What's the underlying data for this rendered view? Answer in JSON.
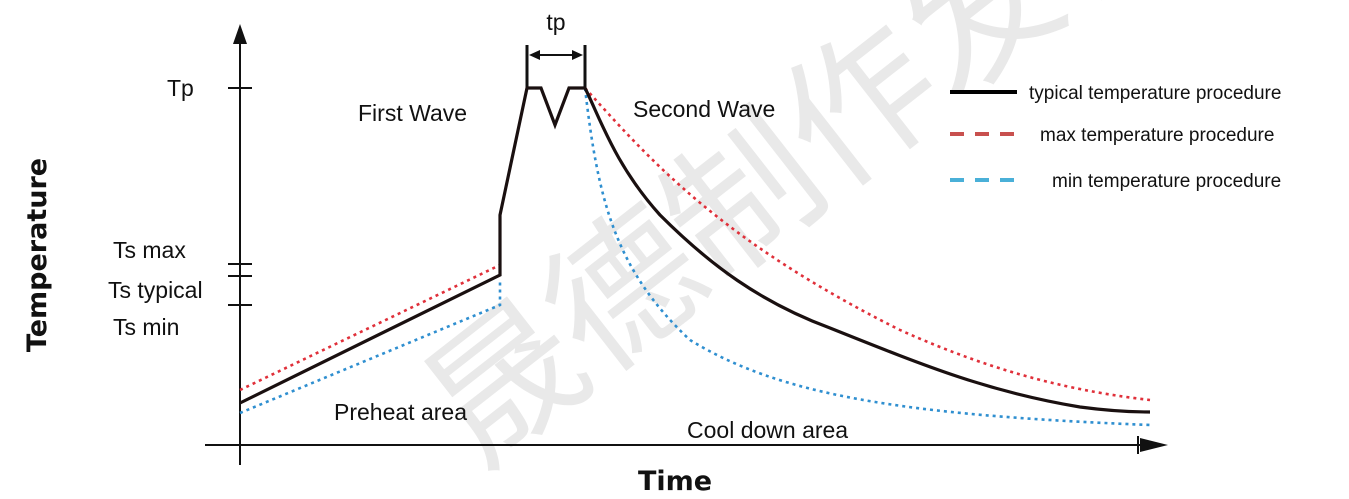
{
  "axes": {
    "x_title": "Time",
    "y_title": "Temperature"
  },
  "y_ticks": {
    "tp": "Tp",
    "ts_max": "Ts max",
    "ts_typical": "Ts typical",
    "ts_min": "Ts min"
  },
  "annotations": {
    "tp": "tp",
    "first_wave": "First Wave",
    "second_wave": "Second Wave",
    "preheat": "Preheat area",
    "cooldown": "Cool down area"
  },
  "legend": {
    "typical": "typical temperature procedure",
    "max": "max temperature procedure",
    "min": "min temperature procedure"
  },
  "watermark": "晟德制作发行",
  "colors": {
    "typical": "#1a1010",
    "max": "#e0303a",
    "min": "#2f8fd0",
    "legend_max": "#c8504e",
    "legend_min": "#4ab0d8"
  }
}
